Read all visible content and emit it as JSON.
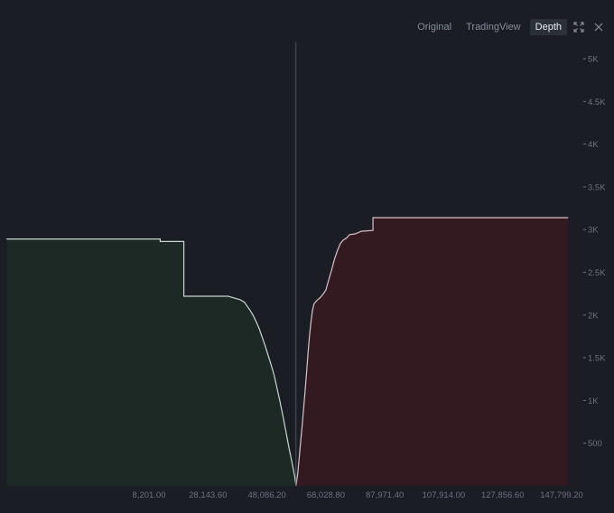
{
  "toolbar": {
    "tabs": [
      {
        "label": "Original",
        "active": false
      },
      {
        "label": "TradingView",
        "active": false
      },
      {
        "label": "Depth",
        "active": true
      }
    ],
    "icons": [
      "expand-icon",
      "close-icon"
    ]
  },
  "colors": {
    "background": "#1b1d24",
    "bid_fill": "#1c2925",
    "bid_line": "#c9d6cf",
    "ask_fill": "#321a20",
    "ask_line": "#d9c3c6",
    "mid_line": "#4a4f58"
  },
  "chart_data": {
    "type": "area",
    "title": "",
    "xlabel": "",
    "ylabel": "",
    "x_ticks": [
      "8,201.00",
      "28,143.60",
      "48,086.20",
      "68,028.80",
      "87,971.40",
      "107,914.00",
      "127,856.60",
      "147,799.20"
    ],
    "x_tick_values": [
      8201.0,
      28143.6,
      48086.2,
      68028.8,
      87971.4,
      107914.0,
      127856.6,
      147799.2
    ],
    "y_ticks": [
      "500",
      "1K",
      "1.5K",
      "2K",
      "2.5K",
      "3K",
      "3.5K",
      "4K",
      "4.5K",
      "5K"
    ],
    "y_tick_values": [
      500,
      1000,
      1500,
      2000,
      2500,
      3000,
      3500,
      4000,
      4500,
      5000
    ],
    "ylim": [
      0,
      5000
    ],
    "xlim": [
      -40000,
      150000
    ],
    "mid_price": 57920,
    "series": [
      {
        "side": "bids",
        "x": [
          -40000,
          12000,
          12000,
          20000,
          20000,
          35000,
          37000,
          39000,
          40500,
          41500,
          42500,
          43500,
          44500,
          45500,
          46500,
          47500,
          48500,
          49500,
          50500,
          51500,
          52500,
          53500,
          54500,
          55500,
          56500,
          57500,
          57920
        ],
        "y": [
          2890,
          2890,
          2860,
          2860,
          2220,
          2220,
          2200,
          2180,
          2150,
          2100,
          2050,
          1990,
          1920,
          1840,
          1740,
          1640,
          1530,
          1420,
          1300,
          1150,
          990,
          820,
          640,
          460,
          290,
          110,
          0
        ]
      },
      {
        "side": "asks",
        "x": [
          57920,
          58500,
          59000,
          59500,
          60000,
          60500,
          61000,
          61500,
          62000,
          62500,
          63000,
          63500,
          64000,
          65000,
          66000,
          67000,
          68000,
          69000,
          70000,
          71000,
          72000,
          73000,
          74000,
          75000,
          76000,
          78000,
          80000,
          84000,
          84000,
          150000
        ],
        "y": [
          0,
          140,
          320,
          510,
          700,
          900,
          1100,
          1320,
          1550,
          1760,
          1920,
          2050,
          2130,
          2170,
          2200,
          2240,
          2290,
          2410,
          2530,
          2660,
          2760,
          2840,
          2880,
          2900,
          2940,
          2950,
          2980,
          2990,
          3140,
          3140
        ]
      }
    ],
    "grid": false,
    "legend": "none"
  }
}
